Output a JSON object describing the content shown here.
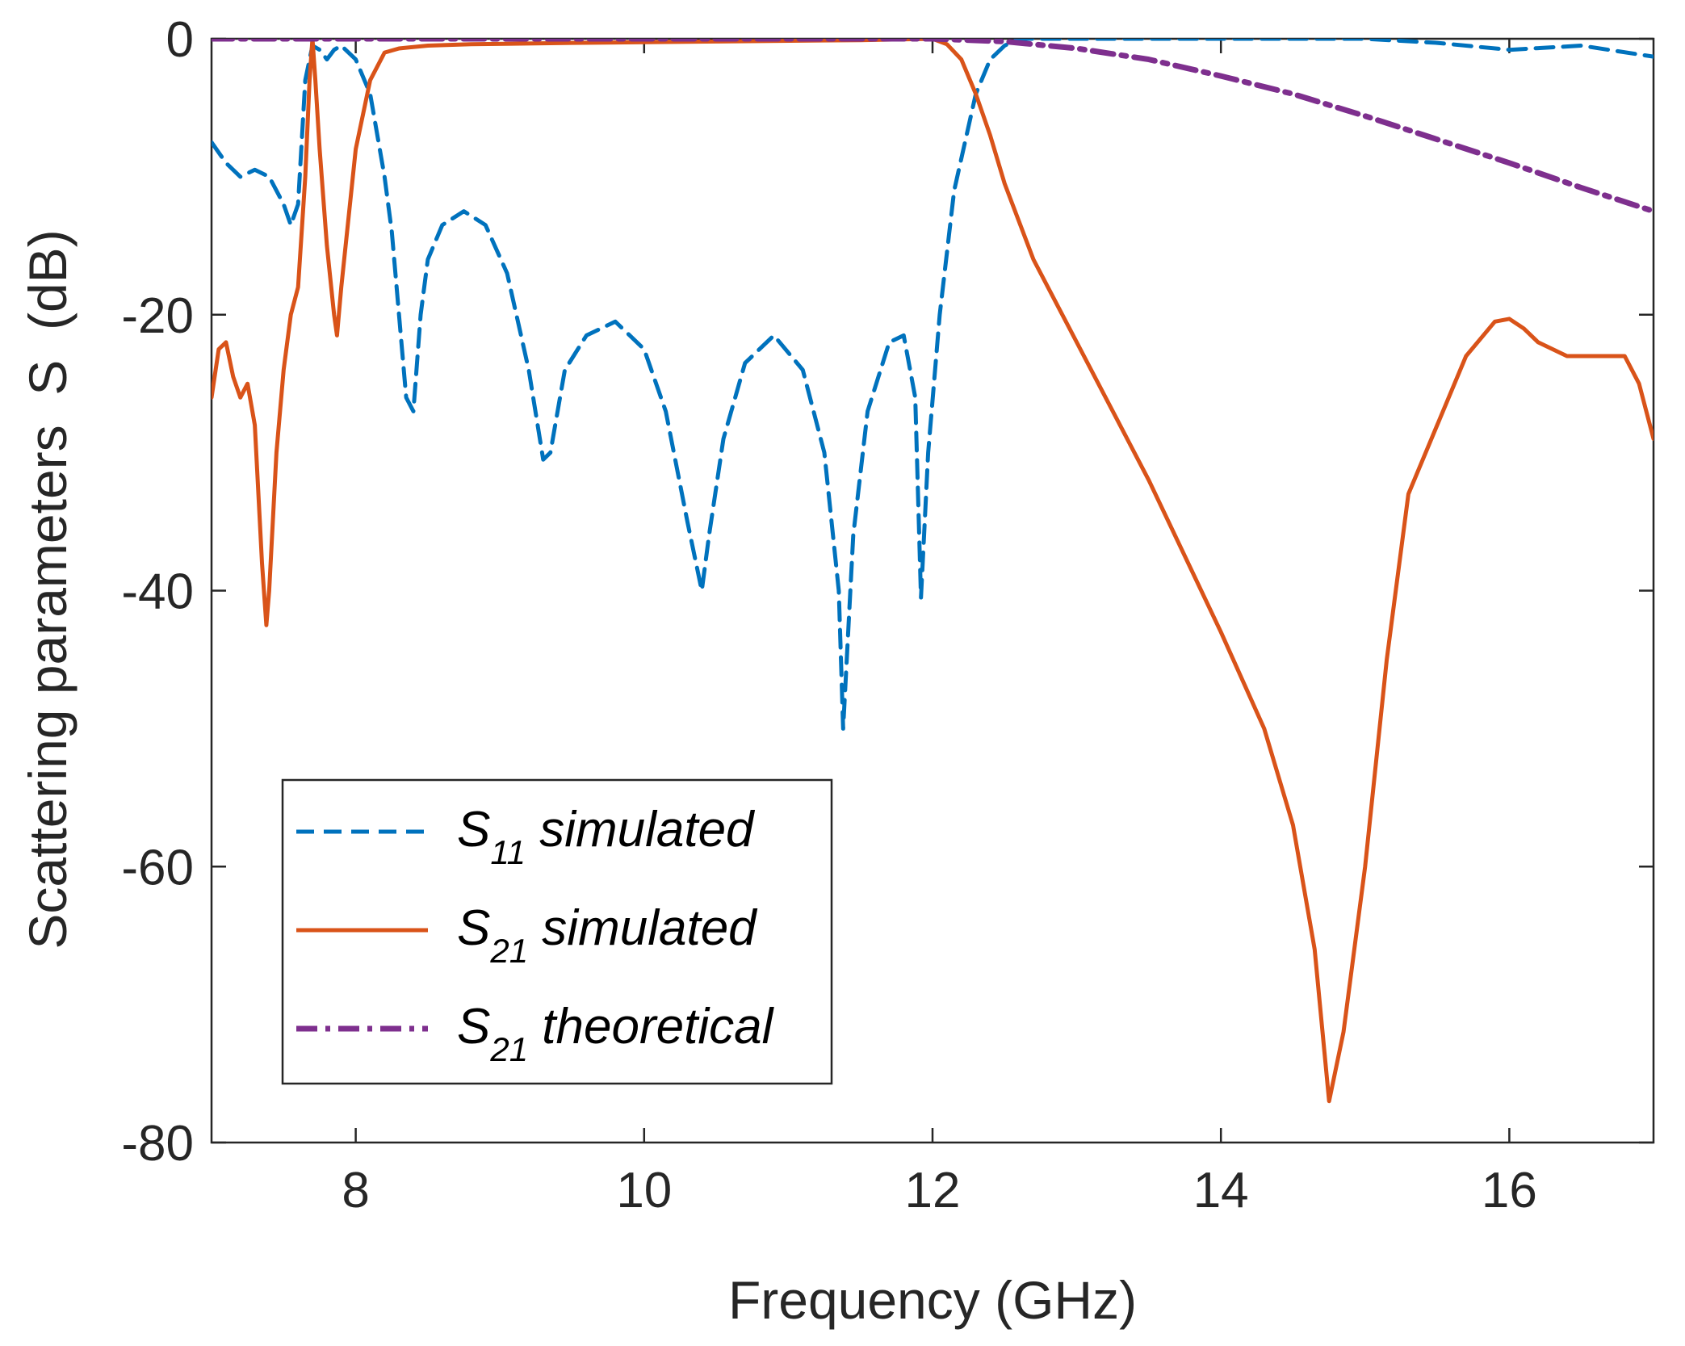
{
  "chart_data": {
    "type": "line",
    "title": "",
    "xlabel": "Frequency (GHz)",
    "ylabel": "Scattering parameters  S  (dB)",
    "xlim": [
      7,
      17
    ],
    "ylim": [
      -80,
      0
    ],
    "xticks": [
      8,
      10,
      12,
      14,
      16
    ],
    "yticks": [
      0,
      -20,
      -40,
      -60,
      -80
    ],
    "grid": false,
    "legend_position": "bottom-left",
    "series": [
      {
        "name": "S11 simulated",
        "label_main": "S",
        "label_sub": "11",
        "label_rest": " simulated",
        "color": "#0072BD",
        "style": "dashed",
        "x": [
          7.0,
          7.1,
          7.2,
          7.3,
          7.4,
          7.5,
          7.55,
          7.6,
          7.65,
          7.7,
          7.75,
          7.8,
          7.85,
          7.9,
          8.0,
          8.1,
          8.2,
          8.25,
          8.3,
          8.35,
          8.4,
          8.45,
          8.5,
          8.6,
          8.75,
          8.9,
          9.05,
          9.2,
          9.3,
          9.35,
          9.45,
          9.6,
          9.8,
          10.0,
          10.15,
          10.3,
          10.4,
          10.45,
          10.55,
          10.7,
          10.9,
          11.1,
          11.25,
          11.35,
          11.38,
          11.45,
          11.55,
          11.7,
          11.8,
          11.88,
          11.92,
          11.97,
          12.05,
          12.15,
          12.3,
          12.4,
          12.5,
          12.6,
          13.0,
          14.0,
          15.0,
          15.5,
          16.0,
          16.5,
          17.0
        ],
        "values": [
          -7.5,
          -9.0,
          -10.0,
          -9.5,
          -10.0,
          -12.0,
          -13.5,
          -12.0,
          -3.0,
          -0.5,
          -0.8,
          -1.5,
          -0.8,
          -0.5,
          -1.5,
          -4.0,
          -10.0,
          -14.0,
          -20.0,
          -26.0,
          -27.0,
          -20.0,
          -16.0,
          -13.5,
          -12.5,
          -13.5,
          -17.0,
          -24.0,
          -30.5,
          -30.0,
          -24.0,
          -21.5,
          -20.5,
          -22.5,
          -27.0,
          -35.0,
          -40.0,
          -36.0,
          -29.0,
          -23.5,
          -21.5,
          -24.0,
          -30.0,
          -40.0,
          -50.0,
          -36.0,
          -27.0,
          -22.0,
          -21.5,
          -26.0,
          -40.5,
          -30.0,
          -20.0,
          -11.0,
          -4.0,
          -1.5,
          -0.5,
          0.0,
          0.0,
          0.0,
          0.0,
          -0.3,
          -0.8,
          -0.5,
          -1.3
        ]
      },
      {
        "name": "S21 simulated",
        "label_main": "S",
        "label_sub": "21",
        "label_rest": " simulated",
        "color": "#D95319",
        "style": "solid",
        "x": [
          7.0,
          7.05,
          7.1,
          7.15,
          7.2,
          7.25,
          7.3,
          7.35,
          7.38,
          7.4,
          7.45,
          7.5,
          7.55,
          7.6,
          7.65,
          7.68,
          7.7,
          7.72,
          7.75,
          7.8,
          7.85,
          7.87,
          7.9,
          8.0,
          8.1,
          8.2,
          8.3,
          8.5,
          8.8,
          9.5,
          10.5,
          11.5,
          12.0,
          12.1,
          12.2,
          12.3,
          12.4,
          12.5,
          12.7,
          13.0,
          13.5,
          14.0,
          14.3,
          14.5,
          14.65,
          14.75,
          14.85,
          15.0,
          15.15,
          15.3,
          15.5,
          15.7,
          15.9,
          16.0,
          16.1,
          16.2,
          16.4,
          16.6,
          16.8,
          16.9,
          17.0
        ],
        "values": [
          -26.0,
          -22.5,
          -22.0,
          -24.5,
          -26.0,
          -25.0,
          -28.0,
          -38.0,
          -42.5,
          -40.0,
          -30.0,
          -24.0,
          -20.0,
          -18.0,
          -10.0,
          -3.0,
          0.0,
          -3.0,
          -8.0,
          -15.0,
          -20.0,
          -21.5,
          -18.0,
          -8.0,
          -3.0,
          -1.0,
          -0.7,
          -0.5,
          -0.4,
          -0.3,
          -0.2,
          -0.1,
          0.0,
          -0.4,
          -1.5,
          -4.0,
          -7.0,
          -10.5,
          -16.0,
          -22.0,
          -32.0,
          -43.0,
          -50.0,
          -57.0,
          -66.0,
          -77.0,
          -72.0,
          -60.0,
          -45.0,
          -33.0,
          -28.0,
          -23.0,
          -20.5,
          -20.3,
          -21.0,
          -22.0,
          -23.0,
          -23.0,
          -23.0,
          -25.0,
          -29.0
        ]
      },
      {
        "name": "S21 theoretical",
        "label_main": "S",
        "label_sub": "21",
        "label_rest": " theoretical",
        "color": "#7E2F8E",
        "style": "dashdot",
        "x": [
          7.0,
          8.0,
          9.0,
          10.0,
          11.0,
          12.0,
          12.5,
          13.0,
          13.5,
          14.0,
          14.5,
          15.0,
          15.5,
          16.0,
          16.5,
          17.0
        ],
        "values": [
          0.0,
          0.0,
          0.0,
          0.0,
          0.0,
          0.0,
          -0.2,
          -0.7,
          -1.5,
          -2.7,
          -4.0,
          -5.6,
          -7.3,
          -9.0,
          -10.8,
          -12.5
        ]
      }
    ]
  }
}
